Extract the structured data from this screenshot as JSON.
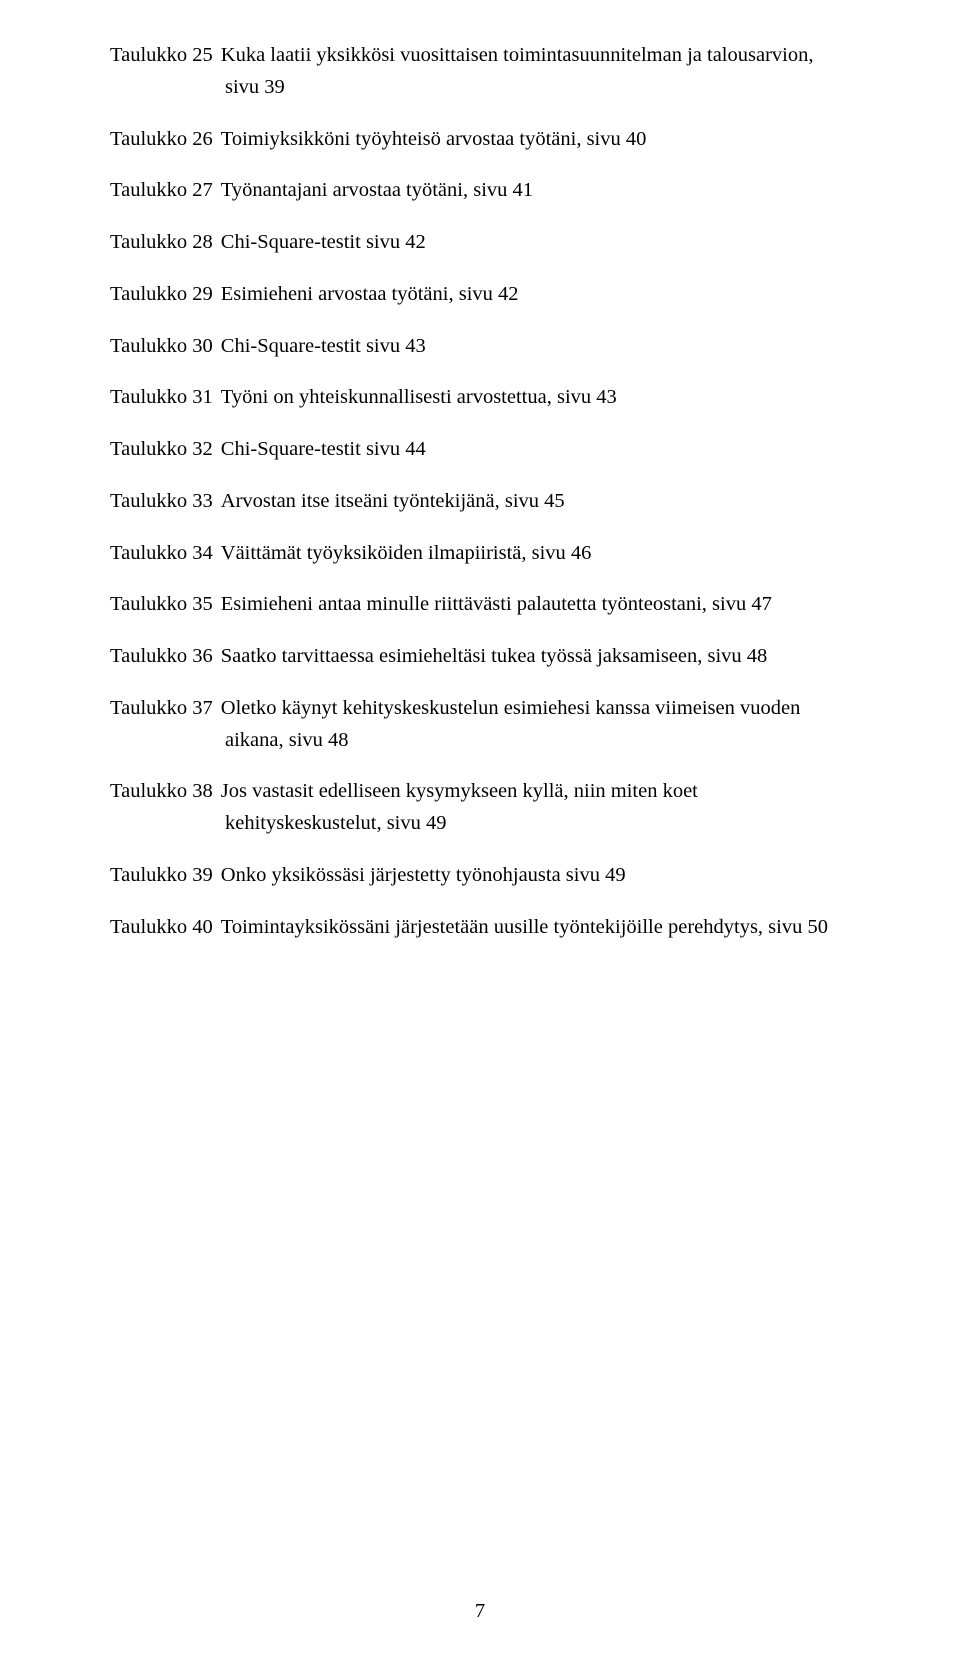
{
  "pageNumber": "7",
  "entries": [
    {
      "label": "Taulukko 25",
      "desc": "Kuka laatii yksikkösi vuosittaisen toimintasuunnitelman ja talousarvion,",
      "cont": "sivu 39"
    },
    {
      "label": "Taulukko 26",
      "desc": "Toimiyksikköni työyhteisö arvostaa työtäni, sivu 40"
    },
    {
      "label": "Taulukko 27",
      "desc": "Työnantajani arvostaa työtäni, sivu 41"
    },
    {
      "label": "Taulukko 28",
      "desc": "Chi-Square-testit sivu 42"
    },
    {
      "label": "Taulukko 29",
      "desc": "Esimieheni arvostaa työtäni, sivu 42"
    },
    {
      "label": "Taulukko 30",
      "desc": "Chi-Square-testit sivu 43"
    },
    {
      "label": "Taulukko 31",
      "desc": "Työni on yhteiskunnallisesti arvostettua, sivu 43"
    },
    {
      "label": "Taulukko 32",
      "desc": "Chi-Square-testit sivu 44"
    },
    {
      "label": "Taulukko 33",
      "desc": "Arvostan itse itseäni työntekijänä, sivu 45"
    },
    {
      "label": "Taulukko 34",
      "desc": "Väittämät työyksiköiden ilmapiiristä, sivu 46"
    },
    {
      "label": "Taulukko 35",
      "desc": "Esimieheni antaa minulle riittävästi palautetta työnteostani, sivu 47"
    },
    {
      "label": "Taulukko 36",
      "desc": "Saatko tarvittaessa esimieheltäsi tukea työssä jaksamiseen, sivu 48"
    },
    {
      "label": "Taulukko 37",
      "desc": "Oletko käynyt kehityskeskustelun esimiehesi kanssa viimeisen vuoden",
      "cont": "aikana, sivu 48"
    },
    {
      "label": "Taulukko 38",
      "desc": "Jos vastasit edelliseen kysymykseen kyllä, niin miten koet",
      "cont": "kehityskeskustelut, sivu 49"
    },
    {
      "label": "Taulukko 39",
      "desc": "Onko yksikössäsi järjestetty työnohjausta sivu 49"
    },
    {
      "label": "Taulukko 40",
      "desc": "Toimintayksikössäni järjestetään uusille työntekijöille perehdytys, sivu 50"
    }
  ]
}
